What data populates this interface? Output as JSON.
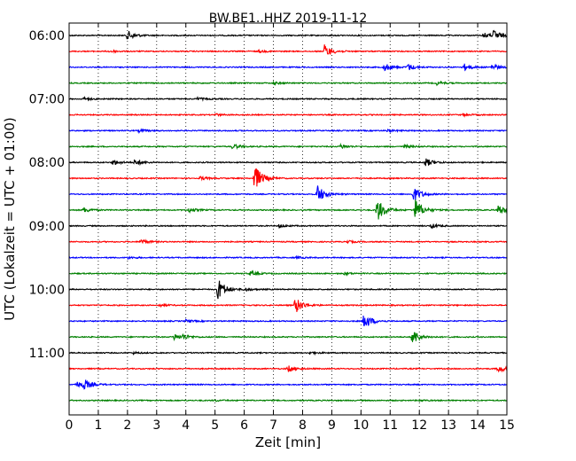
{
  "chart_data": {
    "type": "line",
    "title": "BW.BE1..HHZ 2019-11-12",
    "xlabel": "Zeit  [min]",
    "ylabel": "UTC (Lokalzeit = UTC + 01:00)",
    "xlim": [
      0,
      15
    ],
    "x_ticks": [
      "0",
      "1",
      "2",
      "3",
      "4",
      "5",
      "6",
      "7",
      "8",
      "9",
      "10",
      "11",
      "12",
      "13",
      "14",
      "15"
    ],
    "y_ticks": [
      "06:00",
      "07:00",
      "08:00",
      "09:00",
      "10:00",
      "11:00"
    ],
    "grid": true,
    "colors": [
      "#000000",
      "#ff0000",
      "#0000ff",
      "#008000"
    ],
    "traces": [
      {
        "start": "06:00",
        "color": "#000000",
        "events": [
          {
            "t": 2.0,
            "amp": 0.55
          },
          {
            "t": 14.55,
            "amp": 0.6
          },
          {
            "t": 14.2,
            "amp": 0.3
          }
        ]
      },
      {
        "start": "06:15",
        "color": "#ff0000",
        "events": [
          {
            "t": 8.75,
            "amp": 0.75
          },
          {
            "t": 1.4,
            "amp": 0.15
          },
          {
            "t": 6.5,
            "amp": 0.12
          }
        ]
      },
      {
        "start": "06:30",
        "color": "#0000ff",
        "events": [
          {
            "t": 10.8,
            "amp": 0.45
          },
          {
            "t": 11.6,
            "amp": 0.4
          },
          {
            "t": 13.5,
            "amp": 0.45
          },
          {
            "t": 14.5,
            "amp": 0.35
          }
        ]
      },
      {
        "start": "06:45",
        "color": "#008000",
        "events": [
          {
            "t": 7.0,
            "amp": 0.15
          },
          {
            "t": 12.6,
            "amp": 0.2
          }
        ]
      },
      {
        "start": "07:00",
        "color": "#000000",
        "events": [
          {
            "t": 0.5,
            "amp": 0.15
          },
          {
            "t": 4.4,
            "amp": 0.15
          }
        ]
      },
      {
        "start": "07:15",
        "color": "#ff0000",
        "events": [
          {
            "t": 5.0,
            "amp": 0.12
          },
          {
            "t": 13.5,
            "amp": 0.12
          }
        ]
      },
      {
        "start": "07:30",
        "color": "#0000ff",
        "events": [
          {
            "t": 2.4,
            "amp": 0.15
          },
          {
            "t": 10.9,
            "amp": 0.15
          }
        ]
      },
      {
        "start": "07:45",
        "color": "#008000",
        "events": [
          {
            "t": 5.6,
            "amp": 0.3
          },
          {
            "t": 9.3,
            "amp": 0.25
          },
          {
            "t": 11.5,
            "amp": 0.2
          }
        ]
      },
      {
        "start": "08:00",
        "color": "#000000",
        "events": [
          {
            "t": 1.5,
            "amp": 0.3
          },
          {
            "t": 2.25,
            "amp": 0.35
          },
          {
            "t": 12.2,
            "amp": 0.5
          }
        ]
      },
      {
        "start": "08:15",
        "color": "#ff0000",
        "events": [
          {
            "t": 6.35,
            "amp": 1.6
          },
          {
            "t": 4.5,
            "amp": 0.2
          }
        ]
      },
      {
        "start": "08:30",
        "color": "#0000ff",
        "events": [
          {
            "t": 8.5,
            "amp": 1.1
          },
          {
            "t": 11.8,
            "amp": 0.9
          }
        ]
      },
      {
        "start": "08:45",
        "color": "#008000",
        "events": [
          {
            "t": 10.55,
            "amp": 1.4
          },
          {
            "t": 11.85,
            "amp": 1.3
          },
          {
            "t": 14.7,
            "amp": 0.6
          },
          {
            "t": 0.5,
            "amp": 0.3
          },
          {
            "t": 4.1,
            "amp": 0.25
          }
        ]
      },
      {
        "start": "09:00",
        "color": "#000000",
        "events": [
          {
            "t": 7.2,
            "amp": 0.2
          },
          {
            "t": 12.4,
            "amp": 0.25
          }
        ]
      },
      {
        "start": "09:15",
        "color": "#ff0000",
        "events": [
          {
            "t": 2.45,
            "amp": 0.3
          },
          {
            "t": 9.5,
            "amp": 0.15
          }
        ]
      },
      {
        "start": "09:30",
        "color": "#0000ff",
        "events": [
          {
            "t": 2.0,
            "amp": 0.12
          },
          {
            "t": 7.8,
            "amp": 0.12
          }
        ]
      },
      {
        "start": "09:45",
        "color": "#008000",
        "events": [
          {
            "t": 6.2,
            "amp": 0.25
          },
          {
            "t": 9.4,
            "amp": 0.15
          }
        ]
      },
      {
        "start": "10:00",
        "color": "#000000",
        "events": [
          {
            "t": 5.1,
            "amp": 1.3
          },
          {
            "t": 6.0,
            "amp": 0.2
          }
        ]
      },
      {
        "start": "10:15",
        "color": "#ff0000",
        "events": [
          {
            "t": 7.75,
            "amp": 1.0
          },
          {
            "t": 3.1,
            "amp": 0.15
          }
        ]
      },
      {
        "start": "10:30",
        "color": "#0000ff",
        "events": [
          {
            "t": 10.1,
            "amp": 1.0
          },
          {
            "t": 4.0,
            "amp": 0.15
          }
        ]
      },
      {
        "start": "10:45",
        "color": "#008000",
        "events": [
          {
            "t": 11.75,
            "amp": 1.0
          },
          {
            "t": 3.6,
            "amp": 0.35
          },
          {
            "t": 3.9,
            "amp": 0.25
          }
        ]
      },
      {
        "start": "11:00",
        "color": "#000000",
        "events": [
          {
            "t": 8.25,
            "amp": 0.15
          },
          {
            "t": 2.2,
            "amp": 0.1
          }
        ]
      },
      {
        "start": "11:15",
        "color": "#ff0000",
        "events": [
          {
            "t": 7.5,
            "amp": 0.4
          },
          {
            "t": 14.7,
            "amp": 0.45
          }
        ]
      },
      {
        "start": "11:30",
        "color": "#0000ff",
        "events": [
          {
            "t": 0.5,
            "amp": 0.55
          },
          {
            "t": 0.25,
            "amp": 0.35
          }
        ]
      },
      {
        "start": "11:45",
        "color": "#008000",
        "events": [
          {
            "t": 5.0,
            "amp": 0.08
          },
          {
            "t": 12.0,
            "amp": 0.08
          }
        ]
      }
    ]
  }
}
